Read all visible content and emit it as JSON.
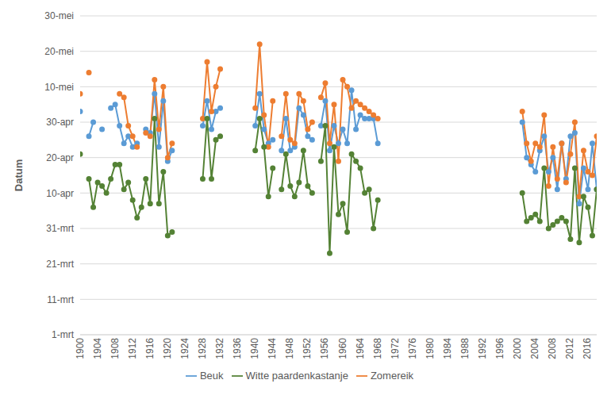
{
  "chart_data": {
    "type": "line",
    "y_label": "Datum",
    "x": [
      1900,
      1901,
      1902,
      1903,
      1904,
      1905,
      1906,
      1907,
      1908,
      1909,
      1910,
      1911,
      1912,
      1913,
      1914,
      1915,
      1916,
      1917,
      1918,
      1919,
      1920,
      1921,
      1922,
      1928,
      1929,
      1930,
      1931,
      1932,
      1933,
      1940,
      1941,
      1942,
      1943,
      1944,
      1945,
      1946,
      1947,
      1948,
      1949,
      1950,
      1951,
      1952,
      1953,
      1954,
      1955,
      1956,
      1957,
      1958,
      1959,
      1960,
      1961,
      1962,
      1963,
      1964,
      1965,
      1966,
      1967,
      1968,
      1969,
      2001,
      2002,
      2003,
      2004,
      2005,
      2006,
      2007,
      2008,
      2009,
      2010,
      2011,
      2012,
      2013,
      2014,
      2015,
      2016,
      2017,
      2018
    ],
    "series": [
      {
        "name": "Beuk",
        "color": "#5b9bd5",
        "marker": "circle",
        "values": [
          123,
          null,
          116,
          120,
          null,
          118,
          null,
          124,
          125,
          119,
          114,
          116,
          113,
          114,
          null,
          118,
          117,
          128,
          113,
          126,
          109,
          112,
          null,
          119,
          126,
          118,
          123,
          124,
          null,
          119,
          128,
          118,
          114,
          115,
          null,
          112,
          121,
          112,
          113,
          124,
          122,
          116,
          115,
          null,
          119,
          126,
          112,
          119,
          114,
          118,
          114,
          129,
          118,
          122,
          121,
          121,
          121,
          114,
          null,
          120,
          110,
          108,
          106,
          112,
          116,
          106,
          110,
          101,
          114,
          104,
          116,
          117,
          97,
          107,
          101,
          114,
          101
        ]
      },
      {
        "name": "Zomereik",
        "color": "#ed7d31",
        "marker": "circle",
        "values": [
          128,
          null,
          134,
          null,
          null,
          null,
          null,
          null,
          null,
          128,
          127,
          119,
          116,
          113,
          null,
          117,
          116,
          132,
          118,
          130,
          110,
          114,
          null,
          121,
          137,
          123,
          130,
          135,
          null,
          124,
          142,
          122,
          113,
          126,
          null,
          116,
          128,
          115,
          114,
          128,
          126,
          118,
          120,
          null,
          127,
          131,
          114,
          125,
          109,
          132,
          130,
          124,
          126,
          125,
          124,
          123,
          122,
          121,
          null,
          123,
          114,
          109,
          114,
          113,
          122,
          102,
          113,
          104,
          114,
          103,
          111,
          120,
          99,
          112,
          106,
          105,
          116
        ]
      },
      {
        "name": "Witte paardenkastanje",
        "color": "#548235",
        "marker": "circle",
        "values": [
          111,
          null,
          104,
          96,
          103,
          102,
          100,
          104,
          108,
          108,
          101,
          103,
          98,
          93,
          96,
          104,
          97,
          121,
          97,
          106,
          88,
          89,
          null,
          104,
          121,
          104,
          115,
          116,
          null,
          112,
          121,
          113,
          99,
          107,
          null,
          101,
          111,
          102,
          99,
          103,
          112,
          102,
          100,
          null,
          109,
          119,
          83,
          113,
          94,
          97,
          89,
          111,
          109,
          107,
          100,
          101,
          90,
          98,
          null,
          100,
          92,
          93,
          94,
          92,
          107,
          90,
          91,
          92,
          93,
          92,
          87,
          107,
          86,
          99,
          96,
          88,
          101
        ]
      }
    ],
    "xlim": [
      1900,
      2018
    ],
    "xticks": [
      1900,
      1904,
      1908,
      1912,
      1916,
      1920,
      1924,
      1928,
      1932,
      1936,
      1940,
      1944,
      1948,
      1952,
      1956,
      1960,
      1964,
      1968,
      1972,
      1976,
      1980,
      1984,
      1988,
      1992,
      1996,
      2000,
      2004,
      2008,
      2012,
      2016
    ],
    "ylim": [
      60,
      150
    ],
    "yticks": [
      {
        "value": 60,
        "label": "1-mrt"
      },
      {
        "value": 70,
        "label": "11-mrt"
      },
      {
        "value": 80,
        "label": "21-mrt"
      },
      {
        "value": 90,
        "label": "31-mrt"
      },
      {
        "value": 100,
        "label": "10-apr"
      },
      {
        "value": 110,
        "label": "20-apr"
      },
      {
        "value": 120,
        "label": "30-apr"
      },
      {
        "value": 130,
        "label": "10-mei"
      },
      {
        "value": 140,
        "label": "20-mei"
      },
      {
        "value": 150,
        "label": "30-mei"
      }
    ],
    "grid": true,
    "legend": "bottom"
  }
}
